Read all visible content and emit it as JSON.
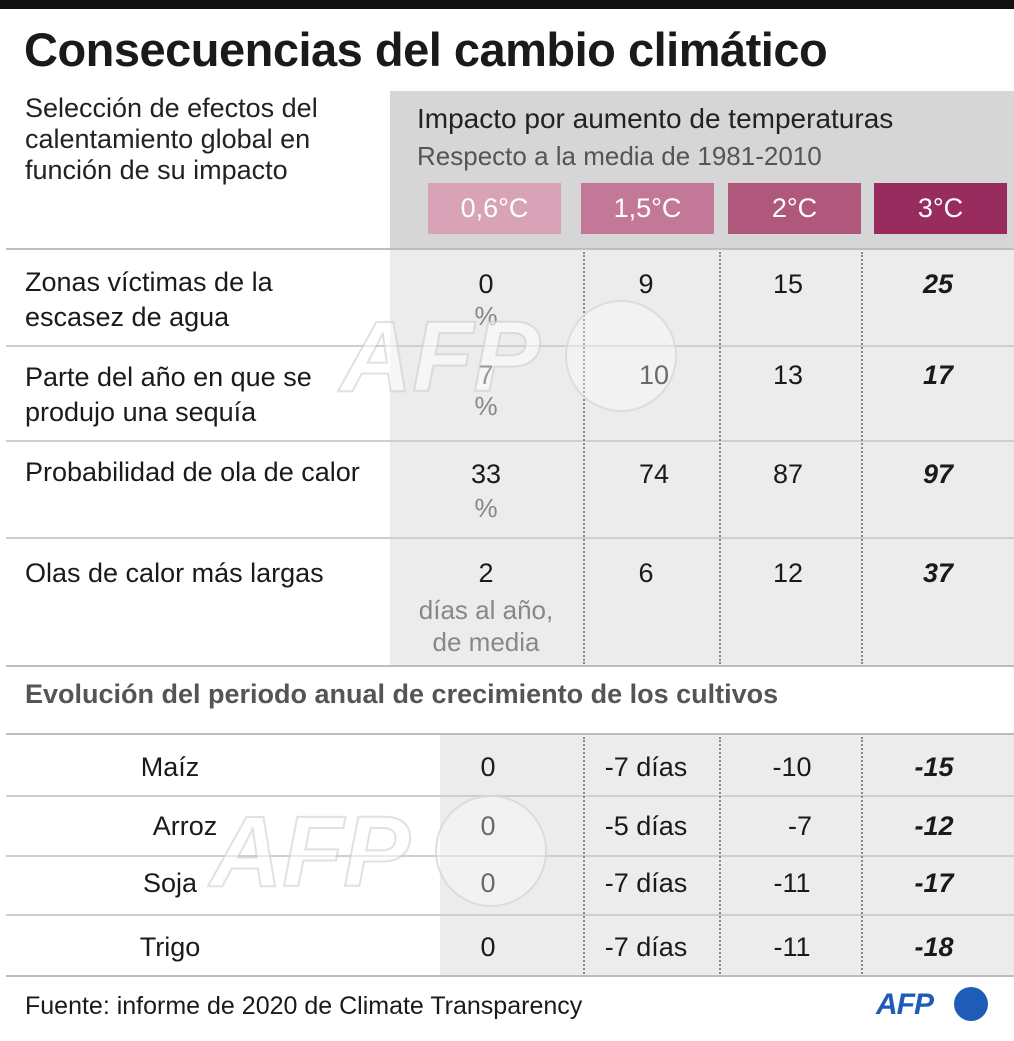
{
  "title": "Consecuencias del cambio climático",
  "subtitle": "Selección de efectos del calentamiento global en función de su impacto",
  "header": {
    "title": "Impacto por aumento de temperaturas",
    "subtitle": "Respecto a la media de 1981-2010",
    "temperatures": [
      {
        "label": "0,6°C",
        "color": "#d9a3b7"
      },
      {
        "label": "1,5°C",
        "color": "#c27896"
      },
      {
        "label": "2°C",
        "color": "#b0587c"
      },
      {
        "label": "3°C",
        "color": "#982c5e"
      }
    ]
  },
  "rows": [
    {
      "label": "Zonas víctimas de la escasez de agua",
      "values": [
        "0",
        "9",
        "15",
        "25"
      ],
      "unit": "%"
    },
    {
      "label": "Parte del año en que se produjo una sequía",
      "values": [
        "7",
        "10",
        "13",
        "17"
      ],
      "unit": "%"
    },
    {
      "label": "Probabilidad de ola de calor",
      "values": [
        "33",
        "74",
        "87",
        "97"
      ],
      "unit": "%"
    },
    {
      "label": "Olas de calor más largas",
      "values": [
        "2",
        "6",
        "12",
        "37"
      ],
      "unit": "días al año, de media"
    }
  ],
  "crops_section": {
    "title": "Evolución del periodo anual de crecimiento de los cultivos",
    "crops": [
      {
        "label": "Maíz",
        "values": [
          "0",
          "-7 días",
          "-10",
          "-15"
        ]
      },
      {
        "label": "Arroz",
        "values": [
          "0",
          "-5 días",
          "-7",
          "-12"
        ]
      },
      {
        "label": "Soja",
        "values": [
          "0",
          "-7 días",
          "-11",
          "-17"
        ]
      },
      {
        "label": "Trigo",
        "values": [
          "0",
          "-7 días",
          "-11",
          "-18"
        ]
      }
    ]
  },
  "source": "Fuente: informe de 2020 de Climate Transparency",
  "logo": {
    "text": "AFP",
    "color": "#1f5cb8"
  },
  "watermark": {
    "text": "AFP"
  }
}
